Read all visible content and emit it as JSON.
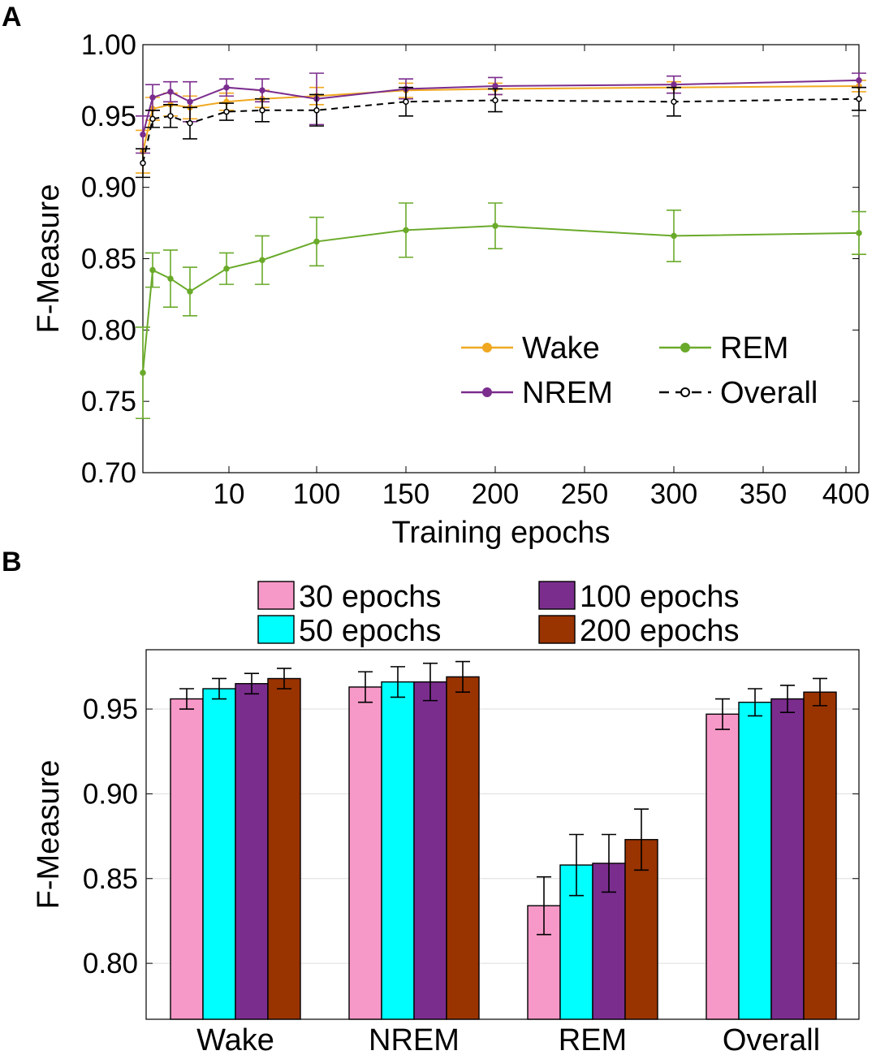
{
  "figure": {
    "panel_a_letter": "A",
    "panel_b_letter": "B"
  },
  "chart_data": [
    {
      "type": "line",
      "panel": "A",
      "title": "",
      "xlabel": "Training epochs",
      "ylabel": "F-Measure",
      "ylim": [
        0.7,
        1.0
      ],
      "yticks": [
        "0.70",
        "0.75",
        "0.80",
        "0.85",
        "0.90",
        "0.95",
        "1.00"
      ],
      "xticks": [
        "10",
        "100",
        "150",
        "200",
        "250",
        "300",
        "350",
        "400"
      ],
      "x_positions_note": "categorical-like spacing; x values are training epochs",
      "x": [
        1,
        2,
        3,
        5,
        10,
        20,
        100,
        150,
        200,
        300,
        400
      ],
      "series": [
        {
          "name": "Wake",
          "color": "#f0a820",
          "dash": false,
          "values": [
            0.925,
            0.955,
            0.958,
            0.956,
            0.96,
            0.962,
            0.964,
            0.968,
            0.969,
            0.97,
            0.971
          ],
          "errors": [
            0.015,
            0.008,
            0.008,
            0.008,
            0.006,
            0.006,
            0.006,
            0.005,
            0.004,
            0.004,
            0.004
          ]
        },
        {
          "name": "NREM",
          "color": "#7b2d8e",
          "dash": false,
          "values": [
            0.937,
            0.963,
            0.967,
            0.96,
            0.97,
            0.968,
            0.962,
            0.969,
            0.971,
            0.972,
            0.975
          ],
          "errors": [
            0.013,
            0.009,
            0.007,
            0.014,
            0.006,
            0.008,
            0.018,
            0.007,
            0.006,
            0.006,
            0.005
          ]
        },
        {
          "name": "REM",
          "color": "#6aaa2a",
          "dash": false,
          "values": [
            0.77,
            0.842,
            0.836,
            0.827,
            0.843,
            0.849,
            0.862,
            0.87,
            0.873,
            0.866,
            0.868
          ],
          "errors": [
            0.032,
            0.012,
            0.02,
            0.017,
            0.011,
            0.017,
            0.017,
            0.019,
            0.016,
            0.018,
            0.015
          ]
        },
        {
          "name": "Overall",
          "color": "#000000",
          "dash": true,
          "values": [
            0.917,
            0.948,
            0.95,
            0.945,
            0.953,
            0.954,
            0.954,
            0.96,
            0.961,
            0.96,
            0.962
          ],
          "errors": [
            0.01,
            0.006,
            0.008,
            0.011,
            0.006,
            0.008,
            0.011,
            0.01,
            0.008,
            0.01,
            0.008
          ]
        }
      ],
      "legend": {
        "placement": "bottom-right",
        "entries": [
          "Wake",
          "REM",
          "NREM",
          "Overall"
        ]
      }
    },
    {
      "type": "bar",
      "panel": "B",
      "title": "",
      "xlabel": "",
      "ylabel": "F-Measure",
      "ylim": [
        0.767,
        0.985
      ],
      "yticks": [
        "0.80",
        "0.85",
        "0.90",
        "0.95"
      ],
      "categories": [
        "Wake",
        "NREM",
        "REM",
        "Overall"
      ],
      "series": [
        {
          "name": "30 epochs",
          "color": "#f799c8",
          "values": [
            0.956,
            0.963,
            0.834,
            0.947
          ],
          "errors": [
            0.006,
            0.009,
            0.017,
            0.009
          ]
        },
        {
          "name": "50 epochs",
          "color": "#00ffff",
          "values": [
            0.962,
            0.966,
            0.858,
            0.954
          ],
          "errors": [
            0.006,
            0.009,
            0.018,
            0.008
          ]
        },
        {
          "name": "100 epochs",
          "color": "#7b2d8e",
          "values": [
            0.965,
            0.966,
            0.859,
            0.956
          ],
          "errors": [
            0.006,
            0.011,
            0.017,
            0.008
          ]
        },
        {
          "name": "200 epochs",
          "color": "#993300",
          "values": [
            0.968,
            0.969,
            0.873,
            0.96
          ],
          "errors": [
            0.006,
            0.009,
            0.018,
            0.008
          ]
        }
      ],
      "grid": true,
      "legend": {
        "placement": "top",
        "entries": [
          "30 epochs",
          "100 epochs",
          "50 epochs",
          "200 epochs"
        ]
      }
    }
  ]
}
